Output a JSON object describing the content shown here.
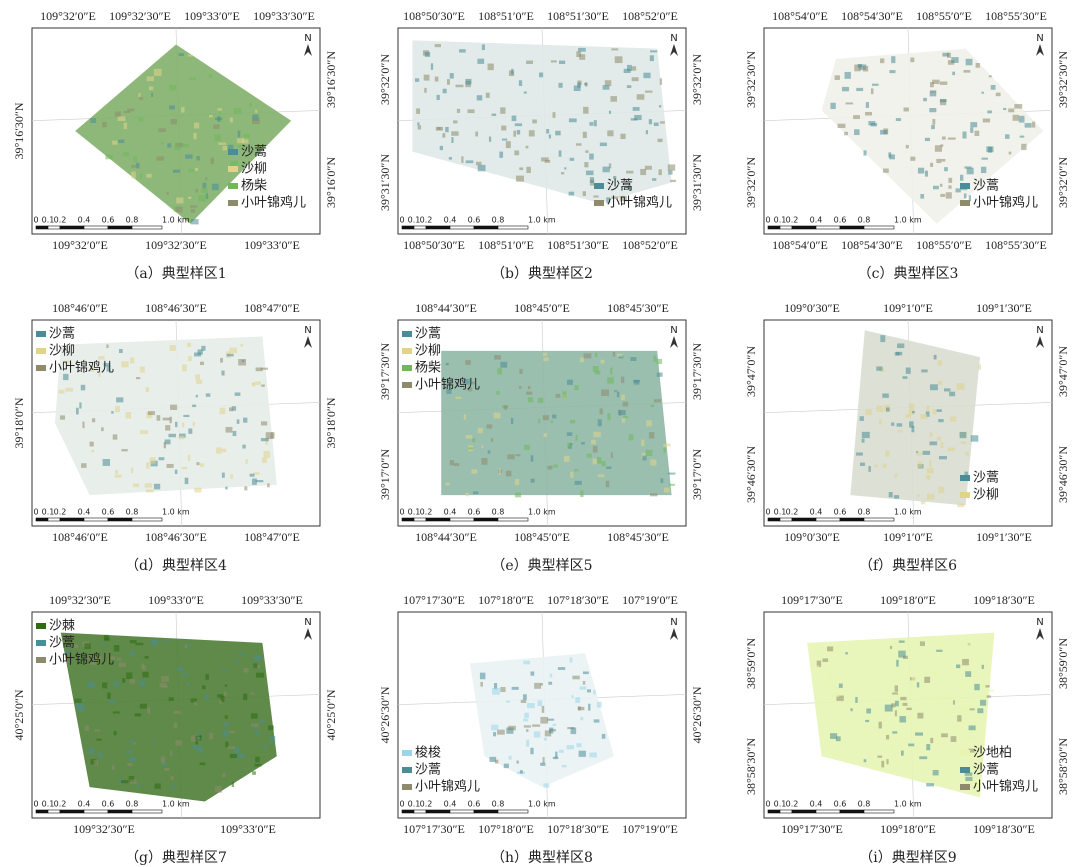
{
  "north": "N",
  "scale_labels": [
    "0",
    "0.1",
    "0.2",
    "0.4",
    "0.6",
    "0.8",
    "1.0 km"
  ],
  "panels": [
    {
      "caption": "（a）典型样区1",
      "top_labels": [
        "109°32′0″E",
        "109°32′30″E",
        "109°33′0″E",
        "109°33′30″E"
      ],
      "bottom_labels": [
        "109°32′0″E",
        "109°32′30″E",
        "109°33′0″E"
      ],
      "left_labels": [
        "39°16′30″N"
      ],
      "right_labels": [
        "39°16′30″N",
        "39°16′0″N"
      ],
      "legend": [
        {
          "name": "沙蒿",
          "color": "#4a8d96"
        },
        {
          "name": "沙柳",
          "color": "#e0d48a"
        },
        {
          "name": "杨柴",
          "color": "#6fb85a"
        },
        {
          "name": "小叶锦鸡儿",
          "color": "#8e8a6c"
        }
      ]
    },
    {
      "caption": "（b）典型样区2",
      "top_labels": [
        "108°50′30″E",
        "108°51′0″E",
        "108°51′30″E",
        "108°52′0″E"
      ],
      "bottom_labels": [
        "108°50′30″E",
        "108°51′0″E",
        "108°51′30″E",
        "108°52′0″E"
      ],
      "left_labels": [
        "39°32′0″N",
        "39°31′30″N"
      ],
      "right_labels": [
        "39°32′0″N",
        "39°31′30″N"
      ],
      "legend": [
        {
          "name": "沙蒿",
          "color": "#4a8d96"
        },
        {
          "name": "小叶锦鸡儿",
          "color": "#8e8a6c"
        }
      ]
    },
    {
      "caption": "（c）典型样区3",
      "top_labels": [
        "108°54′0″E",
        "108°54′30″E",
        "108°55′0″E",
        "108°55′30″E"
      ],
      "bottom_labels": [
        "108°54′0″E",
        "108°54′30″E",
        "108°55′0″E",
        "108°55′30″E"
      ],
      "left_labels": [
        "39°32′30″N",
        "39°32′0″N"
      ],
      "right_labels": [
        "39°32′30″N",
        "39°32′0″N"
      ],
      "legend": [
        {
          "name": "沙蒿",
          "color": "#4a8d96"
        },
        {
          "name": "小叶锦鸡儿",
          "color": "#8e8a6c"
        }
      ]
    },
    {
      "caption": "（d）典型样区4",
      "top_labels": [
        "108°46′0″E",
        "108°46′30″E",
        "108°47′0″E"
      ],
      "bottom_labels": [
        "108°46′0″E",
        "108°46′30″E",
        "108°47′0″E"
      ],
      "left_labels": [
        "39°18′0″N"
      ],
      "right_labels": [
        "39°18′0″N"
      ],
      "legend": [
        {
          "name": "沙蒿",
          "color": "#4a8d96"
        },
        {
          "name": "沙柳",
          "color": "#e0d48a"
        },
        {
          "name": "小叶锦鸡儿",
          "color": "#8e8a6c"
        }
      ]
    },
    {
      "caption": "（e）典型样区5",
      "top_labels": [
        "108°44′30″E",
        "108°45′0″E",
        "108°45′30″E"
      ],
      "bottom_labels": [
        "108°44′30″E",
        "108°45′0″E",
        "108°45′30″E"
      ],
      "left_labels": [
        "39°17′30″N",
        "39°17′0″N"
      ],
      "right_labels": [
        "39°17′30″N",
        "39°17′0″N"
      ],
      "legend": [
        {
          "name": "沙蒿",
          "color": "#4a8d96"
        },
        {
          "name": "沙柳",
          "color": "#e0d48a"
        },
        {
          "name": "杨柴",
          "color": "#6fb85a"
        },
        {
          "name": "小叶锦鸡儿",
          "color": "#8e8a6c"
        }
      ]
    },
    {
      "caption": "（f）典型样区6",
      "top_labels": [
        "109°0′30″E",
        "109°1′0″E",
        "109°1′30″E"
      ],
      "bottom_labels": [
        "109°0′30″E",
        "109°1′0″E",
        "109°1′30″E"
      ],
      "left_labels": [
        "39°47′0″N",
        "39°46′30″N"
      ],
      "right_labels": [
        "39°47′0″N",
        "39°46′30″N"
      ],
      "legend": [
        {
          "name": "沙蒿",
          "color": "#4a8d96"
        },
        {
          "name": "沙柳",
          "color": "#e0d48a"
        }
      ]
    },
    {
      "caption": "（g）典型样区7",
      "top_labels": [
        "109°32′30″E",
        "109°33′0″E",
        "109°33′30″E"
      ],
      "bottom_labels": [
        "109°32′30″E",
        "109°33′0″E"
      ],
      "left_labels": [
        "40°25′0″N"
      ],
      "right_labels": [
        "40°25′0″N"
      ],
      "legend": [
        {
          "name": "沙棘",
          "color": "#2e6b12"
        },
        {
          "name": "沙蒿",
          "color": "#4a8d96"
        },
        {
          "name": "小叶锦鸡儿",
          "color": "#8e8a6c"
        }
      ]
    },
    {
      "caption": "（h）典型样区8",
      "top_labels": [
        "107°17′30″E",
        "107°18′0″E",
        "107°18′30″E",
        "107°19′0″E"
      ],
      "bottom_labels": [
        "107°17′30″E",
        "107°18′0″E",
        "107°18′30″E",
        "107°19′0″E"
      ],
      "left_labels": [
        "40°26′30″N"
      ],
      "right_labels": [
        "40°26′30″N"
      ],
      "legend": [
        {
          "name": "梭梭",
          "color": "#9ad6ea"
        },
        {
          "name": "沙蒿",
          "color": "#4a8d96"
        },
        {
          "name": "小叶锦鸡儿",
          "color": "#8e8a6c"
        }
      ]
    },
    {
      "caption": "（i）典型样区9",
      "top_labels": [
        "109°17′30″E",
        "109°18′0″E",
        "109°18′30″E"
      ],
      "bottom_labels": [
        "109°17′30″E",
        "109°18′0″E",
        "109°18′30″E"
      ],
      "left_labels": [
        "38°59′0″N",
        "38°58′30″N"
      ],
      "right_labels": [
        "38°59′0″N",
        "38°58′30″N"
      ],
      "legend": [
        {
          "name": "沙地柏",
          "color": "#e8f5b0"
        },
        {
          "name": "沙蒿",
          "color": "#4a8d96"
        },
        {
          "name": "小叶锦鸡儿",
          "color": "#8e8a6c"
        }
      ]
    }
  ]
}
